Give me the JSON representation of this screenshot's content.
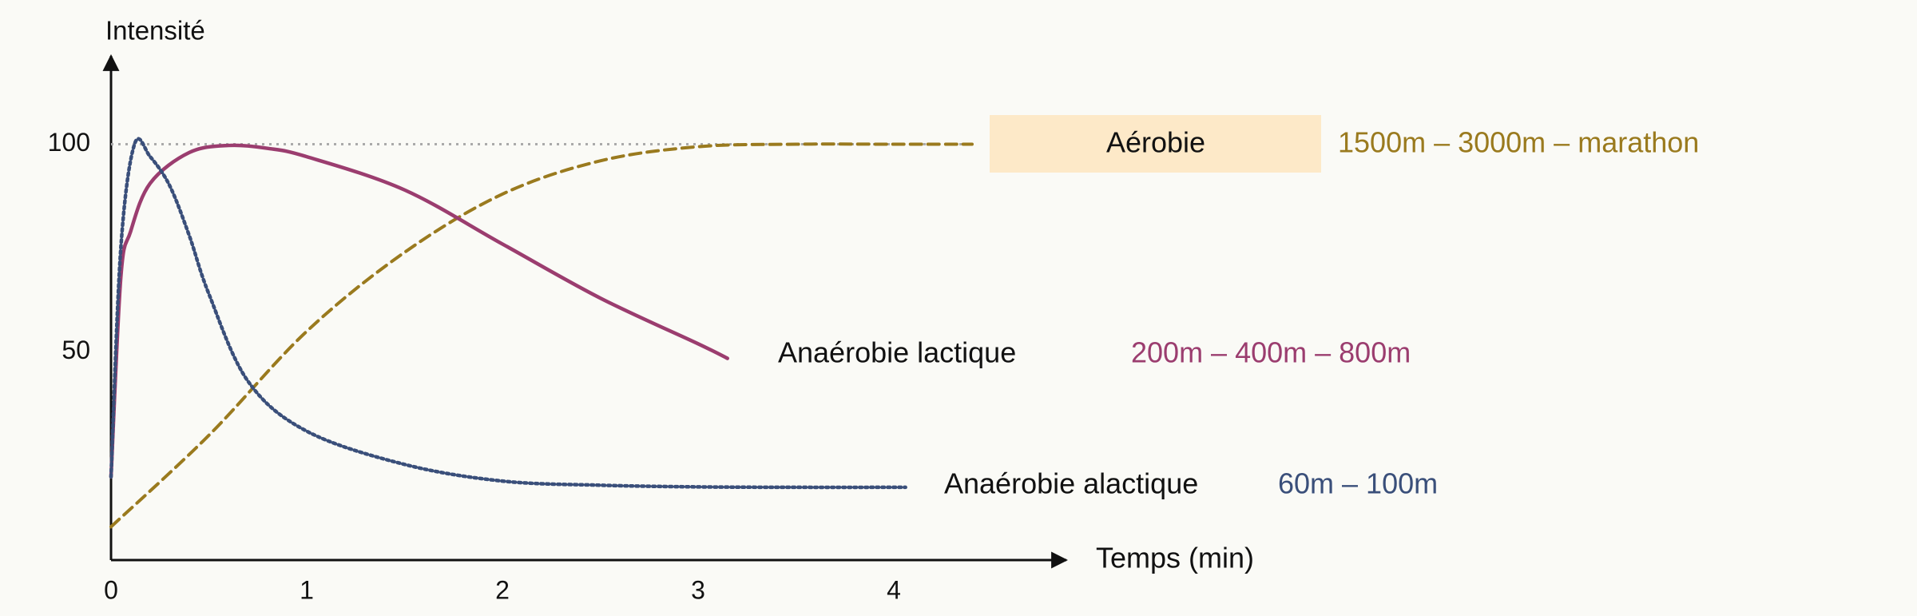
{
  "chart_data": {
    "type": "line",
    "y_label": "Intensité",
    "x_label": "Temps (min)",
    "xlim": [
      0,
      4.9
    ],
    "ylim": [
      0,
      120
    ],
    "xticks": [
      0,
      1,
      2,
      3,
      4
    ],
    "yticks": [
      50,
      100
    ],
    "reference_line": 100,
    "series": [
      {
        "name": "Aérobie",
        "events": "1500m – 3000m – marathon",
        "color": "#9a7a1e",
        "style": "dashed",
        "x": [
          0,
          0.5,
          1,
          1.5,
          2,
          2.5,
          3,
          3.5,
          4,
          4.4
        ],
        "values": [
          8,
          30,
          55,
          74,
          88,
          96,
          99.4,
          100,
          100,
          100
        ]
      },
      {
        "name": "Anaérobie lactique",
        "events": "200m – 400m – 800m",
        "color": "#9b3d6f",
        "style": "solid",
        "x": [
          0,
          0.05,
          0.1,
          0.2,
          0.4,
          0.6,
          0.8,
          1,
          1.5,
          2,
          2.5,
          3,
          3.15
        ],
        "values": [
          20,
          68,
          79,
          90.6,
          98,
          99.7,
          99,
          97,
          89,
          76,
          63,
          52,
          48.5
        ]
      },
      {
        "name": "Anaérobie alactique",
        "events": "60m – 100m",
        "color": "#3a4f7a",
        "style": "dotted",
        "x": [
          0,
          0.05,
          0.12,
          0.2,
          0.3,
          0.4,
          0.5,
          0.7,
          1,
          1.5,
          2,
          2.5,
          3,
          3.5,
          4.06
        ],
        "values": [
          20,
          75,
          100,
          97,
          90,
          78,
          64,
          43,
          31,
          23,
          19,
          18,
          17.6,
          17.5,
          17.5
        ]
      }
    ]
  }
}
